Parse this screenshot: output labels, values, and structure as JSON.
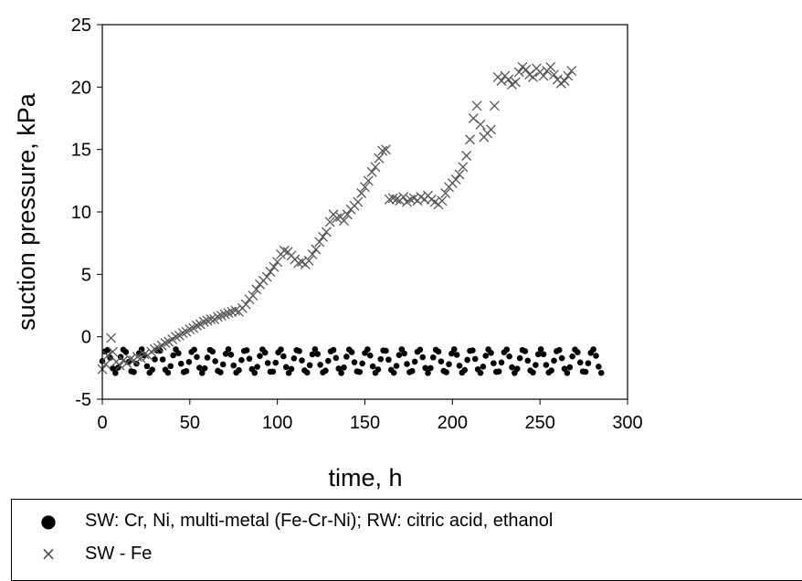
{
  "chart_data": {
    "type": "scatter",
    "xlabel": "time, h",
    "ylabel": "suction pressure, kPa",
    "xlim": [
      0,
      300
    ],
    "ylim": [
      -5,
      25
    ],
    "xticks": [
      "0",
      "50",
      "100",
      "150",
      "200",
      "250",
      "300"
    ],
    "yticks": [
      "-5",
      "0",
      "5",
      "10",
      "15",
      "20",
      "25"
    ],
    "grid": false,
    "legend_position": "bottom",
    "series": [
      {
        "name": "SW: Cr, Ni, multi-metal (Fe-Cr-Ni); RW: citric acid, ethanol",
        "marker": "dot",
        "color": "#000000",
        "band": {
          "x_start": 0,
          "x_end": 285,
          "y_min": -2.9,
          "y_max": -1.0,
          "step": 1.5
        }
      },
      {
        "name": "SW - Fe",
        "marker": "x",
        "color": "#555555",
        "points": [
          [
            0,
            -2.6
          ],
          [
            2,
            -2.2
          ],
          [
            3,
            -1.5
          ],
          [
            5,
            -0.1
          ],
          [
            6,
            -1.2
          ],
          [
            8,
            -2.0
          ],
          [
            10,
            -2.3
          ],
          [
            12,
            -1.9
          ],
          [
            14,
            -2.1
          ],
          [
            16,
            -1.8
          ],
          [
            18,
            -1.9
          ],
          [
            20,
            -1.6
          ],
          [
            22,
            -1.7
          ],
          [
            24,
            -1.4
          ],
          [
            26,
            -1.5
          ],
          [
            28,
            -1.2
          ],
          [
            30,
            -1.0
          ],
          [
            32,
            -0.9
          ],
          [
            34,
            -0.7
          ],
          [
            36,
            -0.5
          ],
          [
            38,
            -0.4
          ],
          [
            40,
            -0.2
          ],
          [
            42,
            0.0
          ],
          [
            44,
            0.1
          ],
          [
            46,
            0.3
          ],
          [
            48,
            0.4
          ],
          [
            50,
            0.6
          ],
          [
            52,
            0.7
          ],
          [
            54,
            0.9
          ],
          [
            56,
            1.0
          ],
          [
            58,
            1.2
          ],
          [
            60,
            1.3
          ],
          [
            62,
            1.4
          ],
          [
            64,
            1.4
          ],
          [
            66,
            1.6
          ],
          [
            68,
            1.7
          ],
          [
            70,
            1.8
          ],
          [
            72,
            1.9
          ],
          [
            74,
            2.0
          ],
          [
            76,
            2.1
          ],
          [
            78,
            2.0
          ],
          [
            80,
            2.3
          ],
          [
            82,
            2.6
          ],
          [
            84,
            3.0
          ],
          [
            86,
            3.3
          ],
          [
            88,
            3.8
          ],
          [
            90,
            4.2
          ],
          [
            92,
            4.5
          ],
          [
            94,
            4.8
          ],
          [
            96,
            5.2
          ],
          [
            98,
            5.6
          ],
          [
            100,
            6.0
          ],
          [
            102,
            6.6
          ],
          [
            104,
            6.9
          ],
          [
            106,
            6.8
          ],
          [
            108,
            6.5
          ],
          [
            110,
            6.2
          ],
          [
            112,
            5.9
          ],
          [
            114,
            6.0
          ],
          [
            116,
            5.8
          ],
          [
            118,
            6.1
          ],
          [
            120,
            6.6
          ],
          [
            122,
            7.0
          ],
          [
            124,
            7.6
          ],
          [
            126,
            8.0
          ],
          [
            128,
            8.4
          ],
          [
            130,
            9.2
          ],
          [
            132,
            9.8
          ],
          [
            134,
            9.5
          ],
          [
            136,
            9.6
          ],
          [
            138,
            9.3
          ],
          [
            140,
            9.8
          ],
          [
            142,
            10.2
          ],
          [
            144,
            10.5
          ],
          [
            146,
            10.8
          ],
          [
            148,
            11.5
          ],
          [
            150,
            12.0
          ],
          [
            152,
            12.5
          ],
          [
            154,
            13.2
          ],
          [
            156,
            13.6
          ],
          [
            158,
            14.3
          ],
          [
            160,
            14.9
          ],
          [
            162,
            15.0
          ],
          [
            164,
            11.0
          ],
          [
            166,
            11.1
          ],
          [
            168,
            11.0
          ],
          [
            170,
            10.9
          ],
          [
            172,
            11.2
          ],
          [
            174,
            10.8
          ],
          [
            176,
            11.0
          ],
          [
            178,
            11.1
          ],
          [
            180,
            10.9
          ],
          [
            182,
            11.2
          ],
          [
            184,
            11.0
          ],
          [
            186,
            11.3
          ],
          [
            188,
            11.0
          ],
          [
            190,
            10.8
          ],
          [
            192,
            10.6
          ],
          [
            194,
            10.9
          ],
          [
            196,
            11.5
          ],
          [
            198,
            12.0
          ],
          [
            200,
            12.3
          ],
          [
            202,
            12.6
          ],
          [
            204,
            13.0
          ],
          [
            206,
            13.6
          ],
          [
            208,
            14.5
          ],
          [
            210,
            15.8
          ],
          [
            212,
            17.5
          ],
          [
            214,
            18.5
          ],
          [
            216,
            17.0
          ],
          [
            218,
            16.0
          ],
          [
            220,
            16.3
          ],
          [
            222,
            16.6
          ],
          [
            224,
            18.5
          ],
          [
            226,
            20.8
          ],
          [
            228,
            20.5
          ],
          [
            230,
            20.9
          ],
          [
            232,
            20.6
          ],
          [
            234,
            20.2
          ],
          [
            236,
            20.4
          ],
          [
            238,
            21.2
          ],
          [
            240,
            21.6
          ],
          [
            242,
            21.4
          ],
          [
            244,
            21.0
          ],
          [
            246,
            20.8
          ],
          [
            248,
            21.5
          ],
          [
            250,
            21.2
          ],
          [
            252,
            20.9
          ],
          [
            254,
            21.3
          ],
          [
            256,
            21.6
          ],
          [
            258,
            21.0
          ],
          [
            260,
            20.6
          ],
          [
            262,
            20.3
          ],
          [
            264,
            20.5
          ],
          [
            266,
            20.9
          ],
          [
            268,
            21.3
          ]
        ]
      }
    ]
  }
}
